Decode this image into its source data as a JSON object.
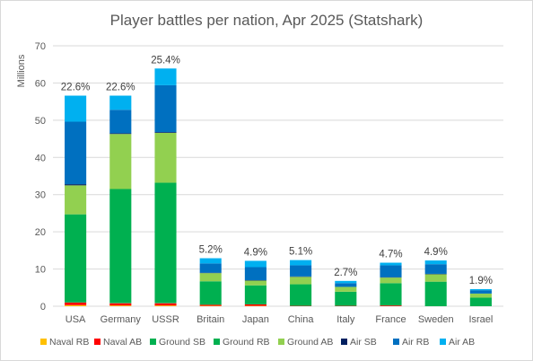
{
  "chart_data": {
    "type": "bar",
    "stacked": true,
    "title": "Player battles per nation, Apr 2025 (Statshark)",
    "ylabel": "Millions",
    "ylim": [
      0,
      70
    ],
    "yticks": [
      0,
      10,
      20,
      30,
      40,
      50,
      60,
      70
    ],
    "grid": true,
    "legend_position": "bottom",
    "categories": [
      "USA",
      "Germany",
      "USSR",
      "Britain",
      "Japan",
      "China",
      "Italy",
      "France",
      "Sweden",
      "Israel"
    ],
    "series": [
      {
        "name": "Naval RB",
        "color": "#FFC000",
        "values": [
          0.3,
          0.2,
          0.2,
          0.1,
          0.1,
          0.0,
          0.0,
          0.0,
          0.0,
          0.0
        ]
      },
      {
        "name": "Naval AB",
        "color": "#FF0000",
        "values": [
          0.7,
          0.6,
          0.6,
          0.3,
          0.4,
          0.1,
          0.1,
          0.2,
          0.0,
          0.0
        ]
      },
      {
        "name": "Ground SB",
        "color": "#00B050",
        "values": [
          0.1,
          0.1,
          0.1,
          0.0,
          0.0,
          0.0,
          0.0,
          0.0,
          0.0,
          0.0
        ]
      },
      {
        "name": "Ground RB",
        "color": "#00B050",
        "values": [
          23.6,
          30.6,
          32.3,
          6.3,
          5.1,
          5.8,
          3.8,
          6.0,
          6.6,
          2.3
        ]
      },
      {
        "name": "Ground AB",
        "color": "#92D050",
        "values": [
          7.8,
          14.8,
          13.4,
          2.2,
          1.3,
          2.0,
          1.3,
          1.5,
          2.0,
          1.1
        ]
      },
      {
        "name": "Air SB",
        "color": "#002060",
        "values": [
          0.3,
          0.2,
          0.2,
          0.1,
          0.1,
          0.1,
          0.0,
          0.1,
          0.1,
          0.0
        ]
      },
      {
        "name": "Air RB",
        "color": "#0070C0",
        "values": [
          16.8,
          6.3,
          12.6,
          2.5,
          3.5,
          3.0,
          1.0,
          3.2,
          2.6,
          0.9
        ]
      },
      {
        "name": "Air AB",
        "color": "#00B0F0",
        "values": [
          7.0,
          3.8,
          4.5,
          1.4,
          1.7,
          1.4,
          0.6,
          0.7,
          1.0,
          0.3
        ]
      }
    ],
    "data_labels": [
      "22.6%",
      "22.6%",
      "25.4%",
      "5.2%",
      "4.9%",
      "5.1%",
      "2.7%",
      "4.7%",
      "4.9%",
      "1.9%"
    ]
  }
}
